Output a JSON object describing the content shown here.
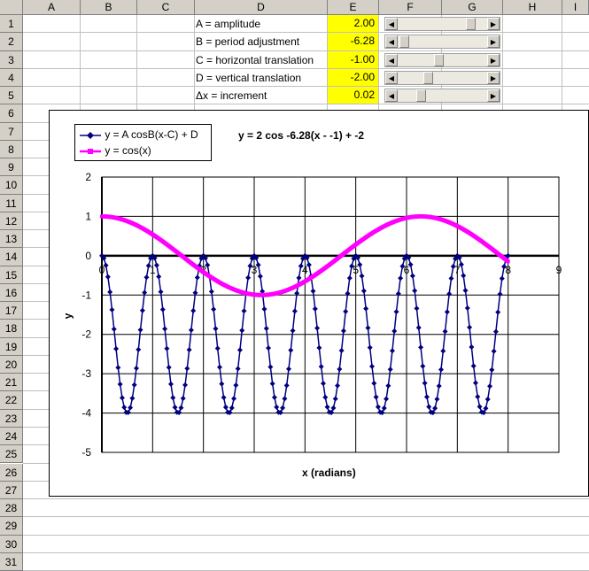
{
  "columns": [
    "A",
    "B",
    "C",
    "D",
    "E",
    "F",
    "G",
    "H",
    "I"
  ],
  "rows": [
    "1",
    "2",
    "3",
    "4",
    "5",
    "6",
    "7",
    "8",
    "9",
    "10",
    "11",
    "12",
    "13",
    "14",
    "15",
    "16",
    "17",
    "18",
    "19",
    "20",
    "21",
    "22",
    "23",
    "24",
    "25",
    "26",
    "27",
    "28",
    "29",
    "30",
    "31"
  ],
  "params": [
    {
      "label": "A = amplitude",
      "value": "2.00",
      "slider_fraction": 0.86
    },
    {
      "label": "B = period adjustment",
      "value": "-6.28",
      "slider_fraction": 0.02
    },
    {
      "label": "C = horizontal translation",
      "value": "-1.00",
      "slider_fraction": 0.45
    },
    {
      "label": "D = vertical translation",
      "value": "-2.00",
      "slider_fraction": 0.32
    },
    {
      "label": "Δx = increment",
      "value": "0.02",
      "slider_fraction": 0.23
    }
  ],
  "colors": {
    "series1": "#000080",
    "series2": "#ff00ff",
    "highlight": "#ffff00",
    "header": "#d4d0c8"
  },
  "chart_data": {
    "type": "line",
    "title": "y = 2 cos -6.28(x - -1) + -2",
    "xlabel": "x (radians)",
    "ylabel": "y",
    "xlim": [
      0,
      9
    ],
    "ylim": [
      -5,
      2
    ],
    "x_ticks": [
      "0",
      "1",
      "2",
      "3",
      "4",
      "5",
      "6",
      "7",
      "8",
      "9"
    ],
    "y_ticks": [
      "2",
      "1",
      "0",
      "-1",
      "-2",
      "-3",
      "-4",
      "-5"
    ],
    "grid": true,
    "legend_position": "top-left",
    "series": [
      {
        "name": "y = A cosB(x-C) + D",
        "function": {
          "A": 2.0,
          "B": -6.28,
          "C": -1.0,
          "D": -2.0
        },
        "x_start": 0,
        "x_end": 8,
        "x_step": 0.04,
        "marker": "diamond"
      },
      {
        "name": "y = cos(x)",
        "function": {
          "A": 1.0,
          "B": 1.0,
          "C": 0.0,
          "D": 0.0
        },
        "x_start": 0,
        "x_end": 8,
        "x_step": 0.02,
        "marker": "square"
      }
    ]
  }
}
